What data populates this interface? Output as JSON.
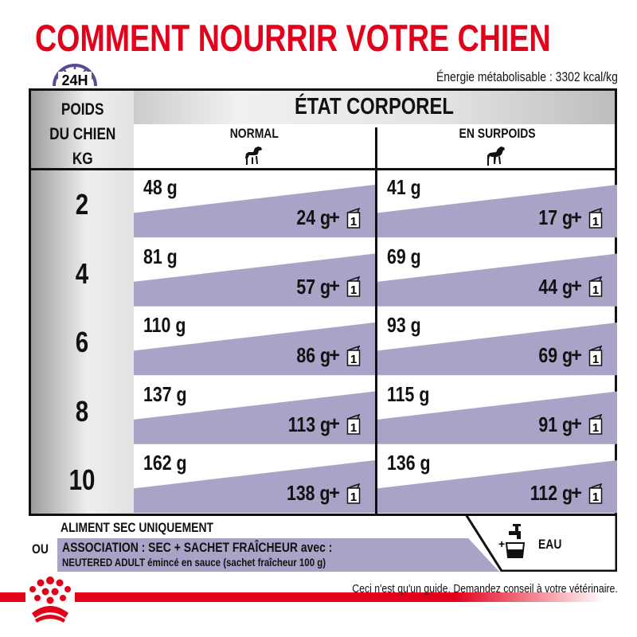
{
  "title": "COMMENT NOURRIR VOTRE CHIEN",
  "clock_label": "24H",
  "energy": "Énergie métabolisable : 3302 kcal/kg",
  "table": {
    "weight_header": [
      "POIDS",
      "DU CHIEN",
      "KG"
    ],
    "state_header": "ÉTAT CORPOREL",
    "columns": [
      "NORMAL",
      "EN SURPOIDS"
    ],
    "rows": [
      {
        "kg": "2",
        "normal": {
          "dry": "48 g",
          "mix": "24 g"
        },
        "overweight": {
          "dry": "41 g",
          "mix": "17 g"
        }
      },
      {
        "kg": "4",
        "normal": {
          "dry": "81 g",
          "mix": "57 g"
        },
        "overweight": {
          "dry": "69 g",
          "mix": "44 g"
        }
      },
      {
        "kg": "6",
        "normal": {
          "dry": "110 g",
          "mix": "86 g"
        },
        "overweight": {
          "dry": "93 g",
          "mix": "69 g"
        }
      },
      {
        "kg": "8",
        "normal": {
          "dry": "137 g",
          "mix": "113 g"
        },
        "overweight": {
          "dry": "115 g",
          "mix": "91 g"
        }
      },
      {
        "kg": "10",
        "normal": {
          "dry": "162 g",
          "mix": "138 g"
        },
        "overweight": {
          "dry": "136 g",
          "mix": "112 g"
        }
      }
    ],
    "plus": "+",
    "pouch_count": "1"
  },
  "footer": {
    "dry_only": "ALIMENT SEC UNIQUEMENT",
    "or": "OU",
    "association": "ASSOCIATION : SEC + SACHET FRAÎCHEUR avec :",
    "product": "NEUTERED ADULT émincé en sauce (sachet fraîcheur 100 g)",
    "water_plus": "+",
    "water": "EAU",
    "disclaimer": "Ceci n'est qu'un guide. Demandez conseil à votre vétérinaire."
  },
  "colors": {
    "title": "#e2001a",
    "band": "#a9a3c7",
    "clock": "#5b4a93"
  }
}
